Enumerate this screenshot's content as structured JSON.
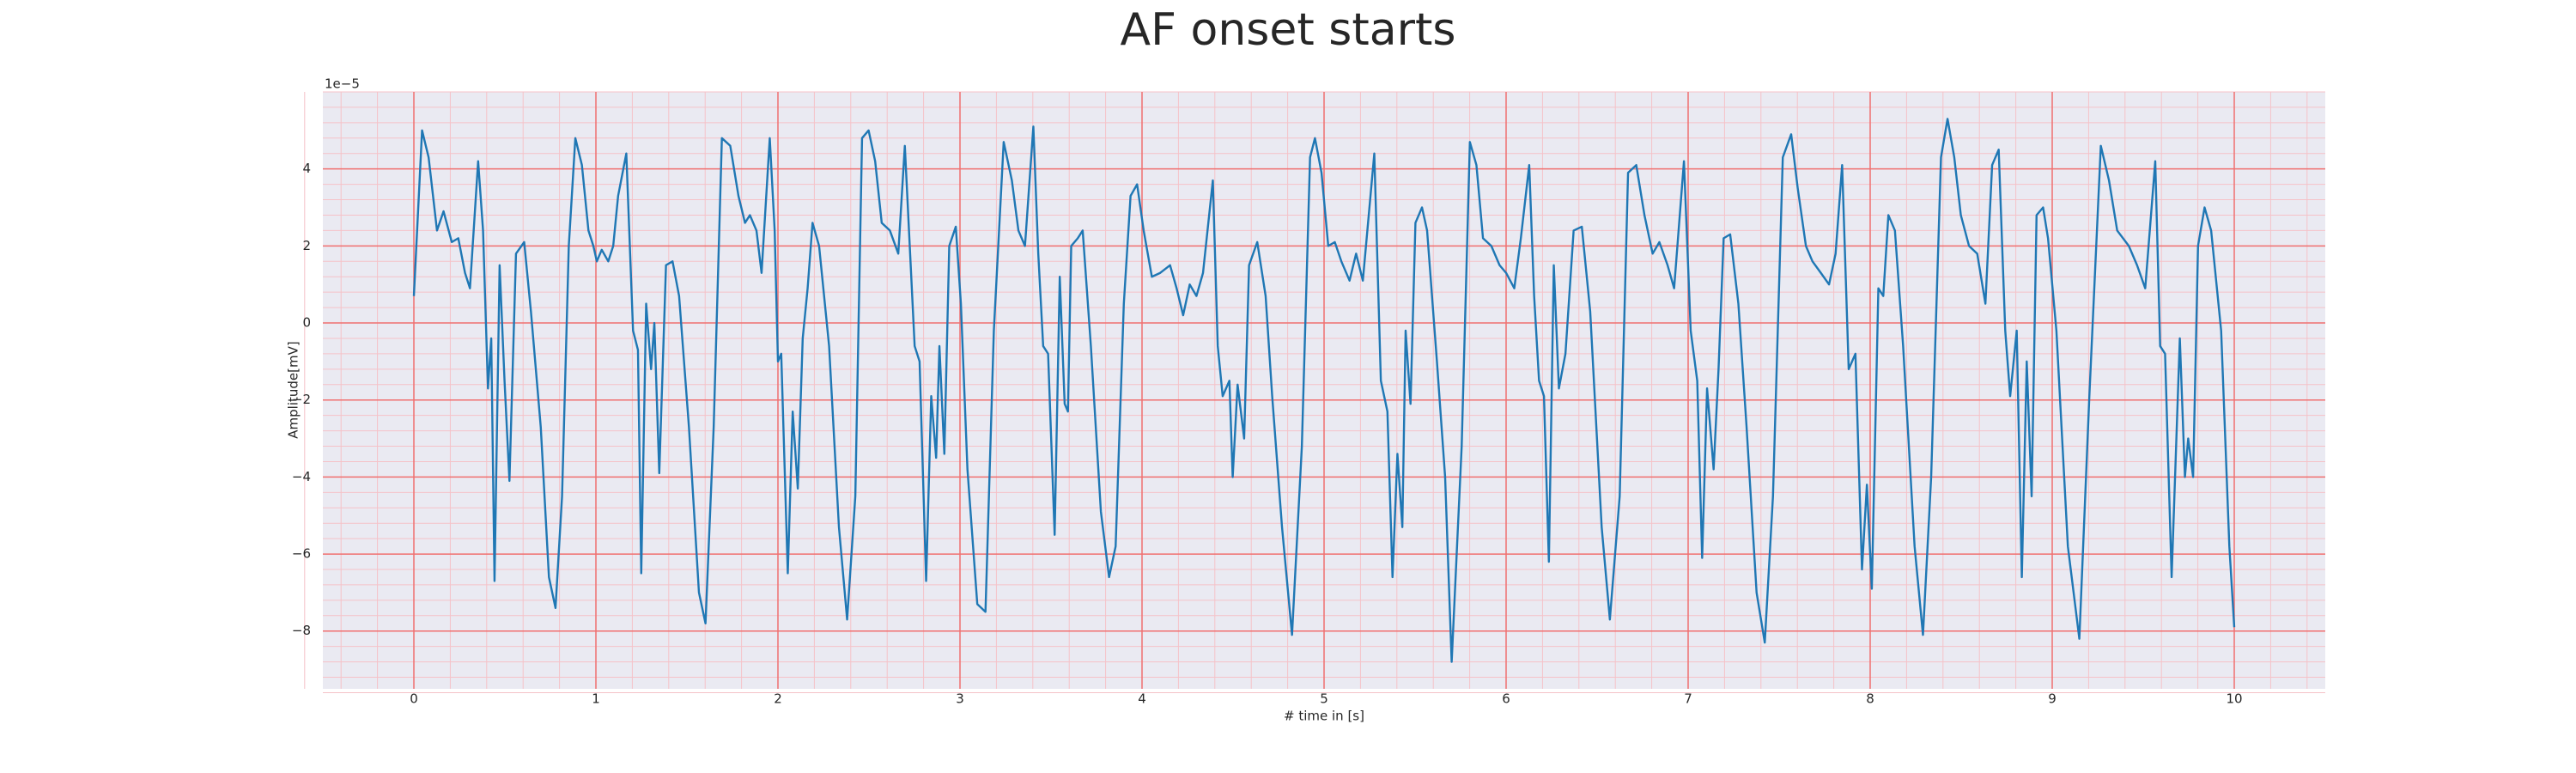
{
  "chart_data": {
    "type": "line",
    "title": "AF onset starts",
    "x_label": "# time in [s]",
    "y_label": "Amplitude[mV]",
    "y_offset_label": "1e−5",
    "color": "#1f77b4",
    "grid": true,
    "grid_color": "#f07070",
    "minor_grid": true,
    "minor_grid_color": "#f5c2c8",
    "xlim": [
      -0.5,
      10.5
    ],
    "ylim": [
      -9.5,
      6
    ],
    "xticks": [
      0,
      1,
      2,
      3,
      4,
      5,
      6,
      7,
      8,
      9,
      10
    ],
    "yticks": [
      {
        "value": -8,
        "label": "−8"
      },
      {
        "value": -6,
        "label": "−6"
      },
      {
        "value": -4,
        "label": "−4"
      },
      {
        "value": -2,
        "label": "−2"
      },
      0,
      2,
      4
    ],
    "x": [
      0,
      0.045,
      0.081,
      0.127,
      0.163,
      0.208,
      0.244,
      0.281,
      0.308,
      0.353,
      0.38,
      0.407,
      0.425,
      0.443,
      0.471,
      0.498,
      0.525,
      0.561,
      0.606,
      0.643,
      0.697,
      0.742,
      0.778,
      0.814,
      0.851,
      0.887,
      0.923,
      0.959,
      0.986,
      1.005,
      1.032,
      1.068,
      1.095,
      1.122,
      1.167,
      1.204,
      1.231,
      1.249,
      1.276,
      1.303,
      1.321,
      1.348,
      1.385,
      1.421,
      1.457,
      1.511,
      1.566,
      1.602,
      1.647,
      1.692,
      1.738,
      1.783,
      1.819,
      1.846,
      1.882,
      1.91,
      1.955,
      1.982,
      2.0,
      2.018,
      2.054,
      2.081,
      2.109,
      2.136,
      2.163,
      2.19,
      2.226,
      2.281,
      2.335,
      2.38,
      2.425,
      2.462,
      2.498,
      2.534,
      2.57,
      2.615,
      2.661,
      2.697,
      2.751,
      2.778,
      2.814,
      2.842,
      2.869,
      2.887,
      2.914,
      2.941,
      2.977,
      3.005,
      3.041,
      3.095,
      3.14,
      3.186,
      3.24,
      3.285,
      3.321,
      3.357,
      3.403,
      3.43,
      3.457,
      3.484,
      3.52,
      3.548,
      3.575,
      3.593,
      3.611,
      3.647,
      3.674,
      3.719,
      3.774,
      3.819,
      3.855,
      3.9,
      3.937,
      3.973,
      4.009,
      4.054,
      4.1,
      4.154,
      4.19,
      4.226,
      4.262,
      4.299,
      4.335,
      4.389,
      4.416,
      4.443,
      4.48,
      4.498,
      4.525,
      4.561,
      4.588,
      4.633,
      4.679,
      4.715,
      4.769,
      4.824,
      4.878,
      4.923,
      4.95,
      4.986,
      5.023,
      5.059,
      5.095,
      5.14,
      5.176,
      5.213,
      5.276,
      5.312,
      5.348,
      5.376,
      5.403,
      5.43,
      5.448,
      5.475,
      5.502,
      5.538,
      5.566,
      5.62,
      5.665,
      5.701,
      5.756,
      5.801,
      5.837,
      5.873,
      5.919,
      5.964,
      6.0,
      6.045,
      6.081,
      6.127,
      6.154,
      6.181,
      6.208,
      6.235,
      6.262,
      6.29,
      6.326,
      6.371,
      6.416,
      6.462,
      6.525,
      6.57,
      6.624,
      6.67,
      6.715,
      6.76,
      6.805,
      6.842,
      6.887,
      6.923,
      6.977,
      7.014,
      7.05,
      7.077,
      7.104,
      7.14,
      7.167,
      7.195,
      7.231,
      7.276,
      7.321,
      7.376,
      7.421,
      7.466,
      7.52,
      7.566,
      7.602,
      7.647,
      7.683,
      7.729,
      7.774,
      7.81,
      7.846,
      7.882,
      7.919,
      7.955,
      7.982,
      8.009,
      8.045,
      8.072,
      8.1,
      8.136,
      8.181,
      8.244,
      8.29,
      8.335,
      8.389,
      8.425,
      8.462,
      8.498,
      8.543,
      8.588,
      8.633,
      8.67,
      8.706,
      8.742,
      8.769,
      8.805,
      8.833,
      8.86,
      8.887,
      8.914,
      8.95,
      8.977,
      9.023,
      9.086,
      9.149,
      9.204,
      9.267,
      9.312,
      9.357,
      9.421,
      9.466,
      9.511,
      9.566,
      9.593,
      9.62,
      9.656,
      9.701,
      9.729,
      9.747,
      9.774,
      9.801,
      9.837,
      9.873,
      9.928,
      9.973,
      10.0
    ],
    "values": [
      0.7,
      5.0,
      4.3,
      2.4,
      2.9,
      2.1,
      2.2,
      1.3,
      0.9,
      4.2,
      2.4,
      -1.7,
      -0.4,
      -6.7,
      1.5,
      -1.5,
      -4.1,
      1.8,
      2.1,
      0.3,
      -2.7,
      -6.6,
      -7.4,
      -4.5,
      2.0,
      4.8,
      4.1,
      2.4,
      2.0,
      1.6,
      1.9,
      1.6,
      2.0,
      3.3,
      4.4,
      -0.2,
      -0.7,
      -6.5,
      0.5,
      -1.2,
      0,
      -3.9,
      1.5,
      1.6,
      0.7,
      -2.7,
      -7.0,
      -7.8,
      -2.7,
      4.8,
      4.6,
      3.3,
      2.6,
      2.8,
      2.4,
      1.3,
      4.8,
      2.4,
      -1.0,
      -0.8,
      -6.5,
      -2.3,
      -4.3,
      -0.4,
      0.9,
      2.6,
      2.0,
      -0.6,
      -5.3,
      -7.7,
      -4.5,
      4.8,
      5.0,
      4.2,
      2.6,
      2.4,
      1.8,
      4.6,
      -0.6,
      -1.0,
      -6.7,
      -1.9,
      -3.5,
      -0.6,
      -3.4,
      2.0,
      2.5,
      0.5,
      -3.8,
      -7.3,
      -7.5,
      -0.2,
      4.7,
      3.7,
      2.4,
      2.0,
      5.1,
      1.8,
      -0.6,
      -0.8,
      -5.5,
      1.2,
      -2.1,
      -2.3,
      2.0,
      2.2,
      2.4,
      -0.6,
      -4.9,
      -6.6,
      -5.8,
      0.5,
      3.3,
      3.6,
      2.4,
      1.2,
      1.3,
      1.5,
      0.9,
      0.2,
      1.0,
      0.7,
      1.3,
      3.7,
      -0.6,
      -1.9,
      -1.5,
      -4.0,
      -1.6,
      -3.0,
      1.5,
      2.1,
      0.7,
      -1.9,
      -5.3,
      -8.1,
      -3.2,
      4.3,
      4.8,
      3.9,
      2.0,
      2.1,
      1.6,
      1.1,
      1.8,
      1.1,
      4.4,
      -1.5,
      -2.3,
      -6.6,
      -3.4,
      -5.3,
      -0.2,
      -2.1,
      2.6,
      3.0,
      2.4,
      -1.0,
      -4.0,
      -8.8,
      -3.2,
      4.7,
      4.1,
      2.2,
      2.0,
      1.5,
      1.3,
      0.9,
      2.2,
      4.1,
      0.7,
      -1.5,
      -1.9,
      -6.2,
      1.5,
      -1.7,
      -0.8,
      2.4,
      2.5,
      0.3,
      -5.3,
      -7.7,
      -4.5,
      3.9,
      4.1,
      2.8,
      1.8,
      2.1,
      1.5,
      0.9,
      4.2,
      -0.2,
      -1.5,
      -6.1,
      -1.7,
      -3.8,
      -1.2,
      2.2,
      2.3,
      0.5,
      -2.7,
      -7.0,
      -8.3,
      -4.5,
      4.3,
      4.9,
      3.5,
      2.0,
      1.6,
      1.3,
      1.0,
      1.8,
      4.1,
      -1.2,
      -0.8,
      -6.4,
      -4.2,
      -6.9,
      0.9,
      0.7,
      2.8,
      2.4,
      -0.6,
      -5.8,
      -8.1,
      -4.0,
      4.3,
      5.3,
      4.3,
      2.8,
      2.0,
      1.8,
      0.5,
      4.1,
      4.5,
      -0.2,
      -1.9,
      -0.2,
      -6.6,
      -1.0,
      -4.5,
      2.8,
      3.0,
      2.2,
      -0.2,
      -5.8,
      -8.2,
      -1.9,
      4.6,
      3.7,
      2.4,
      2.0,
      1.5,
      0.9,
      4.2,
      -0.6,
      -0.8,
      -6.6,
      -0.4,
      -4.0,
      -3.0,
      -4.0,
      2.0,
      3.0,
      2.4,
      -0.2,
      -5.8,
      -7.9
    ]
  }
}
